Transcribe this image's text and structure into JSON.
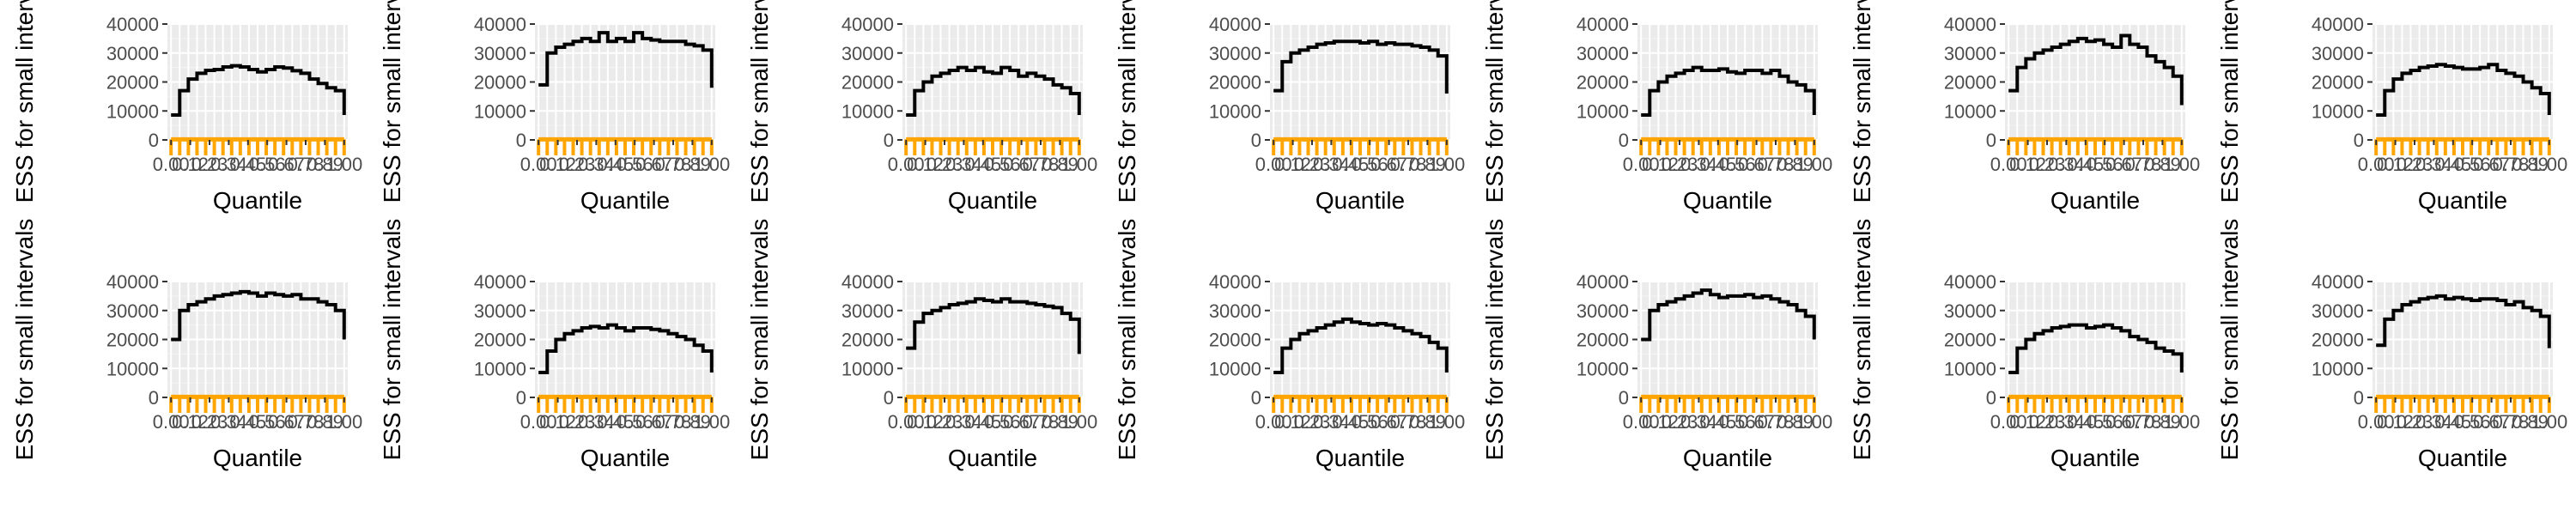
{
  "chart_data": [
    {
      "type": "line",
      "xlabel": "Quantile",
      "ylabel": "ESS for small intervals",
      "ylim": [
        0,
        40000
      ],
      "yticks": [
        "0",
        "10000",
        "20000",
        "30000",
        "40000"
      ],
      "xticks": [
        "0.00",
        "0.12",
        "0.23",
        "0.34",
        "0.45",
        "0.56",
        "0.67",
        "0.78",
        "0.89",
        "1.00"
      ],
      "series": [
        {
          "values": [
            8600,
            17000,
            21000,
            23000,
            24000,
            24300,
            25200,
            25600,
            25200,
            24300,
            23500,
            24300,
            25200,
            24800,
            23900,
            23000,
            21000,
            19500,
            18000,
            17000,
            8600
          ]
        },
        {
          "values": [
            200,
            200,
            200,
            200,
            200,
            200,
            200,
            200,
            200,
            200,
            200,
            200,
            200,
            200,
            200,
            200,
            200,
            200,
            200,
            200,
            200
          ]
        }
      ]
    },
    {
      "type": "line",
      "xlabel": "Quantile",
      "ylabel": "ESS for small intervals",
      "ylim": [
        0,
        40000
      ],
      "yticks": [
        "0",
        "10000",
        "20000",
        "30000",
        "40000"
      ],
      "xticks": [
        "0.00",
        "0.12",
        "0.23",
        "0.34",
        "0.45",
        "0.56",
        "0.67",
        "0.78",
        "0.89",
        "1.00"
      ],
      "series": [
        {
          "values": [
            19000,
            30000,
            32000,
            33000,
            34000,
            35000,
            34000,
            37000,
            34000,
            35000,
            34000,
            37000,
            35000,
            34500,
            34000,
            34000,
            34000,
            33000,
            32500,
            31000,
            18000
          ]
        },
        {
          "values": [
            200,
            200,
            200,
            200,
            200,
            200,
            200,
            200,
            200,
            200,
            200,
            200,
            200,
            200,
            200,
            200,
            200,
            200,
            200,
            200,
            200
          ]
        }
      ]
    },
    {
      "type": "line",
      "xlabel": "Quantile",
      "ylabel": "ESS for small intervals",
      "ylim": [
        0,
        40000
      ],
      "yticks": [
        "0",
        "10000",
        "20000",
        "30000",
        "40000"
      ],
      "xticks": [
        "0.00",
        "0.12",
        "0.23",
        "0.34",
        "0.45",
        "0.56",
        "0.67",
        "0.78",
        "0.89",
        "1.00"
      ],
      "series": [
        {
          "values": [
            8600,
            17000,
            20000,
            22000,
            23000,
            24000,
            25000,
            24000,
            25000,
            23500,
            23000,
            25000,
            24000,
            22000,
            23000,
            22000,
            21000,
            19000,
            18000,
            16000,
            8600
          ]
        },
        {
          "values": [
            200,
            200,
            200,
            200,
            200,
            200,
            200,
            200,
            200,
            200,
            200,
            200,
            200,
            200,
            200,
            200,
            200,
            200,
            200,
            200,
            200
          ]
        }
      ]
    },
    {
      "type": "line",
      "xlabel": "Quantile",
      "ylabel": "ESS for small intervals",
      "ylim": [
        0,
        40000
      ],
      "yticks": [
        "0",
        "10000",
        "20000",
        "30000",
        "40000"
      ],
      "xticks": [
        "0.00",
        "0.12",
        "0.23",
        "0.34",
        "0.45",
        "0.56",
        "0.67",
        "0.78",
        "0.89",
        "1.00"
      ],
      "series": [
        {
          "values": [
            17000,
            27000,
            30000,
            31000,
            32000,
            33000,
            33500,
            34000,
            34000,
            34000,
            33500,
            34000,
            33000,
            33500,
            33000,
            33000,
            32500,
            32000,
            31000,
            29000,
            16000
          ]
        },
        {
          "values": [
            200,
            200,
            200,
            200,
            200,
            200,
            200,
            200,
            200,
            200,
            200,
            200,
            200,
            200,
            200,
            200,
            200,
            200,
            200,
            200,
            200
          ]
        }
      ]
    },
    {
      "type": "line",
      "xlabel": "Quantile",
      "ylabel": "ESS for small intervals",
      "ylim": [
        0,
        40000
      ],
      "yticks": [
        "0",
        "10000",
        "20000",
        "30000",
        "40000"
      ],
      "xticks": [
        "0.00",
        "0.12",
        "0.23",
        "0.34",
        "0.45",
        "0.56",
        "0.67",
        "0.78",
        "0.89",
        "1.00"
      ],
      "series": [
        {
          "values": [
            8600,
            17000,
            20000,
            22000,
            23000,
            24000,
            25000,
            24000,
            24000,
            24500,
            23500,
            23000,
            24000,
            24000,
            23000,
            24000,
            22000,
            20000,
            19000,
            17000,
            8600
          ]
        },
        {
          "values": [
            200,
            200,
            200,
            200,
            200,
            200,
            200,
            200,
            200,
            200,
            200,
            200,
            200,
            200,
            200,
            200,
            200,
            200,
            200,
            200,
            200
          ]
        }
      ]
    },
    {
      "type": "line",
      "xlabel": "Quantile",
      "ylabel": "ESS for small intervals",
      "ylim": [
        0,
        40000
      ],
      "yticks": [
        "0",
        "10000",
        "20000",
        "30000",
        "40000"
      ],
      "xticks": [
        "0.00",
        "0.12",
        "0.23",
        "0.34",
        "0.45",
        "0.56",
        "0.67",
        "0.78",
        "0.89",
        "1.00"
      ],
      "series": [
        {
          "values": [
            17000,
            25000,
            28000,
            30000,
            31000,
            32000,
            33000,
            34000,
            35000,
            34000,
            34500,
            33000,
            32000,
            36000,
            33000,
            32000,
            29000,
            27000,
            25000,
            22000,
            12000
          ]
        },
        {
          "values": [
            200,
            200,
            200,
            200,
            200,
            200,
            200,
            200,
            200,
            200,
            200,
            200,
            200,
            200,
            200,
            200,
            200,
            200,
            200,
            200,
            200
          ]
        }
      ]
    },
    {
      "type": "line",
      "xlabel": "Quantile",
      "ylabel": "ESS for small intervals",
      "ylim": [
        0,
        40000
      ],
      "yticks": [
        "0",
        "10000",
        "20000",
        "30000",
        "40000"
      ],
      "xticks": [
        "0.00",
        "0.12",
        "0.23",
        "0.34",
        "0.45",
        "0.56",
        "0.67",
        "0.78",
        "0.89",
        "1.00"
      ],
      "series": [
        {
          "values": [
            8600,
            17000,
            21000,
            23000,
            24000,
            25000,
            25500,
            26000,
            25500,
            25000,
            24500,
            24500,
            25000,
            26000,
            24000,
            23000,
            22000,
            20000,
            18000,
            16000,
            8600
          ]
        },
        {
          "values": [
            200,
            200,
            200,
            200,
            200,
            200,
            200,
            200,
            200,
            200,
            200,
            200,
            200,
            200,
            200,
            200,
            200,
            200,
            200,
            200,
            200
          ]
        }
      ]
    },
    {
      "type": "line",
      "xlabel": "Quantile",
      "ylabel": "ESS for small intervals",
      "ylim": [
        0,
        40000
      ],
      "yticks": [
        "0",
        "10000",
        "20000",
        "30000",
        "40000"
      ],
      "xticks": [
        "0.00",
        "0.12",
        "0.23",
        "0.34",
        "0.45",
        "0.56",
        "0.67",
        "0.78",
        "0.89",
        "1.00"
      ],
      "series": [
        {
          "values": [
            20000,
            30000,
            32000,
            33000,
            34000,
            35000,
            35500,
            36000,
            36500,
            36000,
            35000,
            36000,
            35500,
            35000,
            35500,
            34000,
            34000,
            33000,
            32000,
            30000,
            20000
          ]
        },
        {
          "values": [
            200,
            200,
            200,
            200,
            200,
            200,
            200,
            200,
            200,
            200,
            200,
            200,
            200,
            200,
            200,
            200,
            200,
            200,
            200,
            200,
            200
          ]
        }
      ]
    },
    {
      "type": "line",
      "xlabel": "Quantile",
      "ylabel": "ESS for small intervals",
      "ylim": [
        0,
        40000
      ],
      "yticks": [
        "0",
        "10000",
        "20000",
        "30000",
        "40000"
      ],
      "xticks": [
        "0.00",
        "0.12",
        "0.23",
        "0.34",
        "0.45",
        "0.56",
        "0.67",
        "0.78",
        "0.89",
        "1.00"
      ],
      "series": [
        {
          "values": [
            8600,
            16000,
            20000,
            22000,
            23000,
            24000,
            24500,
            24000,
            25000,
            24000,
            23000,
            24000,
            24000,
            23500,
            23000,
            22000,
            21000,
            20000,
            18000,
            16000,
            8600
          ]
        },
        {
          "values": [
            200,
            200,
            200,
            200,
            200,
            200,
            200,
            200,
            200,
            200,
            200,
            200,
            200,
            200,
            200,
            200,
            200,
            200,
            200,
            200,
            200
          ]
        }
      ]
    },
    {
      "type": "line",
      "xlabel": "Quantile",
      "ylabel": "ESS for small intervals",
      "ylim": [
        0,
        40000
      ],
      "yticks": [
        "0",
        "10000",
        "20000",
        "30000",
        "40000"
      ],
      "xticks": [
        "0.00",
        "0.12",
        "0.23",
        "0.34",
        "0.45",
        "0.56",
        "0.67",
        "0.78",
        "0.89",
        "1.00"
      ],
      "series": [
        {
          "values": [
            17000,
            26000,
            29000,
            30000,
            31000,
            32000,
            32500,
            33000,
            34000,
            33500,
            33000,
            34000,
            33000,
            33000,
            32500,
            32000,
            31500,
            31000,
            29000,
            27000,
            15000
          ]
        },
        {
          "values": [
            200,
            200,
            200,
            200,
            200,
            200,
            200,
            200,
            200,
            200,
            200,
            200,
            200,
            200,
            200,
            200,
            200,
            200,
            200,
            200,
            200
          ]
        }
      ]
    },
    {
      "type": "line",
      "xlabel": "Quantile",
      "ylabel": "ESS for small intervals",
      "ylim": [
        0,
        40000
      ],
      "yticks": [
        "0",
        "10000",
        "20000",
        "30000",
        "40000"
      ],
      "xticks": [
        "0.00",
        "0.12",
        "0.23",
        "0.34",
        "0.45",
        "0.56",
        "0.67",
        "0.78",
        "0.89",
        "1.00"
      ],
      "series": [
        {
          "values": [
            8600,
            17000,
            20000,
            22000,
            23000,
            24000,
            25000,
            26000,
            27000,
            26000,
            25500,
            25000,
            25500,
            25000,
            24000,
            23000,
            22000,
            21000,
            19000,
            17000,
            8600
          ]
        },
        {
          "values": [
            200,
            200,
            200,
            200,
            200,
            200,
            200,
            200,
            200,
            200,
            200,
            200,
            200,
            200,
            200,
            200,
            200,
            200,
            200,
            200,
            200
          ]
        }
      ]
    },
    {
      "type": "line",
      "xlabel": "Quantile",
      "ylabel": "ESS for small intervals",
      "ylim": [
        0,
        40000
      ],
      "yticks": [
        "0",
        "10000",
        "20000",
        "30000",
        "40000"
      ],
      "xticks": [
        "0.00",
        "0.12",
        "0.23",
        "0.34",
        "0.45",
        "0.56",
        "0.67",
        "0.78",
        "0.89",
        "1.00"
      ],
      "series": [
        {
          "values": [
            20000,
            30000,
            32000,
            33000,
            34000,
            35000,
            36000,
            37000,
            35500,
            34500,
            35000,
            35000,
            35500,
            34500,
            35000,
            34000,
            33000,
            32000,
            30000,
            28000,
            20000
          ]
        },
        {
          "values": [
            200,
            200,
            200,
            200,
            200,
            200,
            200,
            200,
            200,
            200,
            200,
            200,
            200,
            200,
            200,
            200,
            200,
            200,
            200,
            200,
            200
          ]
        }
      ]
    },
    {
      "type": "line",
      "xlabel": "Quantile",
      "ylabel": "ESS for small intervals",
      "ylim": [
        0,
        40000
      ],
      "yticks": [
        "0",
        "10000",
        "20000",
        "30000",
        "40000"
      ],
      "xticks": [
        "0.00",
        "0.12",
        "0.23",
        "0.34",
        "0.45",
        "0.56",
        "0.67",
        "0.78",
        "0.89",
        "1.00"
      ],
      "series": [
        {
          "values": [
            8600,
            17000,
            20000,
            22000,
            23000,
            24000,
            24500,
            25000,
            25000,
            24000,
            24500,
            25000,
            24000,
            23000,
            21000,
            20000,
            19000,
            17000,
            16000,
            15000,
            8600
          ]
        },
        {
          "values": [
            200,
            200,
            200,
            200,
            200,
            200,
            200,
            200,
            200,
            200,
            200,
            200,
            200,
            200,
            200,
            200,
            200,
            200,
            200,
            200,
            200
          ]
        }
      ]
    },
    {
      "type": "line",
      "xlabel": "Quantile",
      "ylabel": "ESS for small intervals",
      "ylim": [
        0,
        40000
      ],
      "yticks": [
        "0",
        "10000",
        "20000",
        "30000",
        "40000"
      ],
      "xticks": [
        "0.00",
        "0.12",
        "0.23",
        "0.34",
        "0.45",
        "0.56",
        "0.67",
        "0.78",
        "0.89",
        "1.00"
      ],
      "series": [
        {
          "values": [
            18000,
            27000,
            30000,
            32000,
            33000,
            34000,
            34500,
            35000,
            34000,
            34500,
            34000,
            33500,
            34000,
            34000,
            33500,
            32000,
            33000,
            31000,
            30000,
            28000,
            17000
          ]
        },
        {
          "values": [
            200,
            200,
            200,
            200,
            200,
            200,
            200,
            200,
            200,
            200,
            200,
            200,
            200,
            200,
            200,
            200,
            200,
            200,
            200,
            200,
            200
          ]
        }
      ]
    }
  ],
  "colors": {
    "panel": "#ebebeb",
    "grid_major": "#ffffff",
    "grid_minor": "#f4f4f4",
    "ess_line": "#000000",
    "small_line": "#ffa500",
    "tick_text": "#4d4d4d"
  }
}
